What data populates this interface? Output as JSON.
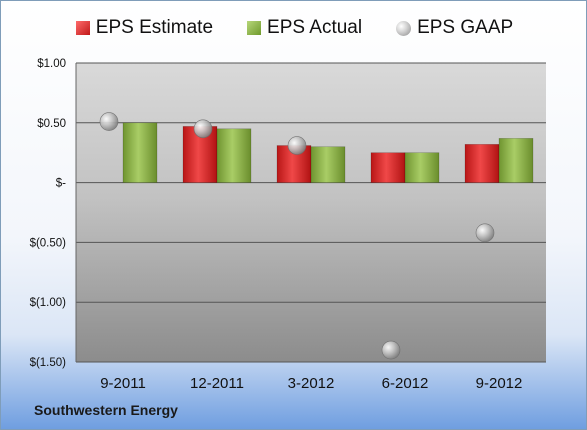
{
  "company": "Southwestern Energy",
  "chart_data": {
    "type": "bar",
    "categories": [
      "9-2011",
      "12-2011",
      "3-2012",
      "6-2012",
      "9-2012"
    ],
    "series": [
      {
        "name": "EPS Estimate",
        "kind": "bar",
        "color": "#d42a2a",
        "values": [
          null,
          0.47,
          0.31,
          0.25,
          0.32
        ]
      },
      {
        "name": "EPS Actual",
        "kind": "bar",
        "color": "#8db24a",
        "values": [
          0.5,
          0.45,
          0.3,
          0.25,
          0.37
        ]
      },
      {
        "name": "EPS GAAP",
        "kind": "marker",
        "color": "#a6a6a6",
        "values": [
          0.51,
          0.45,
          0.31,
          -1.4,
          -0.42
        ]
      }
    ],
    "yticks": [
      1.0,
      0.5,
      0,
      -0.5,
      -1.0,
      -1.5
    ],
    "ytick_labels": [
      "$1.00",
      "$0.50",
      "$-",
      "$(0.50)",
      "$(1.00)",
      "$(1.50)"
    ],
    "ylim": [
      -1.5,
      1.0
    ],
    "grid": true,
    "legend": "top",
    "title": "",
    "xlabel": "",
    "ylabel": ""
  }
}
